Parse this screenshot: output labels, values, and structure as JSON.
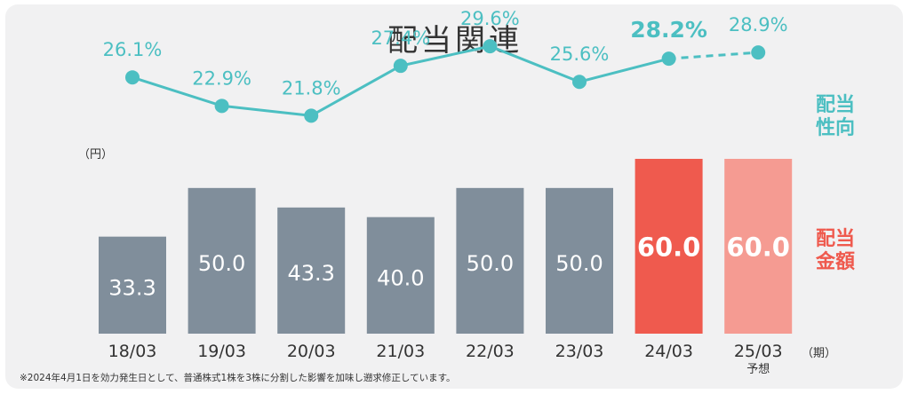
{
  "chart_data": {
    "type": "bar+line",
    "title": "配当関連",
    "categories": [
      "18/03",
      "19/03",
      "20/03",
      "21/03",
      "22/03",
      "23/03",
      "24/03",
      "25/03"
    ],
    "category_sublabels": [
      "",
      "",
      "",
      "",
      "",
      "",
      "",
      "予想"
    ],
    "bar_series": {
      "name": "配当\n金額",
      "unit_label": "（円）",
      "values": [
        33.3,
        50.0,
        43.3,
        40.0,
        50.0,
        50.0,
        60.0,
        60.0
      ],
      "labels": [
        "33.3",
        "50.0",
        "43.3",
        "40.0",
        "50.0",
        "50.0",
        "60.0",
        "60.0"
      ],
      "color": "#808e9b",
      "highlight_color": "#ef5a4e",
      "forecast_color": "#f59b92"
    },
    "line_series": {
      "name": "配当\n性向",
      "values": [
        26.1,
        22.9,
        21.8,
        27.4,
        29.6,
        25.6,
        28.2,
        28.9
      ],
      "labels": [
        "26.1%",
        "22.9%",
        "21.8%",
        "27.4%",
        "29.6%",
        "25.6%",
        "28.2%",
        "28.9%"
      ],
      "color": "#4cbfc2"
    },
    "x_unit_label": "（期）",
    "footnote": "※2024年4月1日を効力発生日として、普通株式1株を3株に分割した影響を加味し遡求修正しています。"
  }
}
